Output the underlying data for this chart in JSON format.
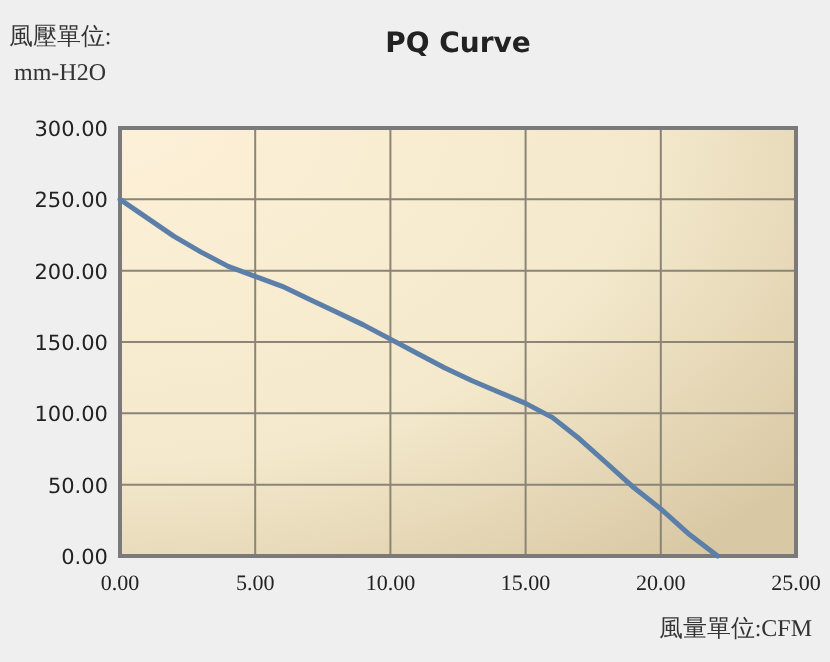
{
  "chart_data": {
    "type": "line",
    "title": "PQ Curve",
    "xlabel": "風量單位:CFM",
    "ylabel": "風壓單位: mm-H2O",
    "x": [
      0,
      1,
      2,
      3,
      4,
      5,
      6,
      7,
      8,
      9,
      10,
      11,
      12,
      13,
      14,
      15,
      16,
      17,
      18,
      19,
      20,
      21,
      22.1
    ],
    "series": [
      {
        "color": "#5b7fa8",
        "values": [
          250,
          237,
          224,
          213,
          203,
          196,
          189,
          180,
          171,
          162,
          152,
          142,
          132,
          123,
          115,
          107,
          97,
          82,
          65,
          48,
          33,
          16,
          0
        ]
      }
    ],
    "xlim": [
      0,
      25
    ],
    "ylim": [
      0,
      300
    ],
    "xticks": [
      {
        "value": 0,
        "label": "0.00"
      },
      {
        "value": 5,
        "label": "5.00"
      },
      {
        "value": 10,
        "label": "10.00"
      },
      {
        "value": 15,
        "label": "15.00"
      },
      {
        "value": 20,
        "label": "20.00"
      },
      {
        "value": 25,
        "label": "25.00"
      }
    ],
    "yticks": [
      {
        "value": 0,
        "label": "0.00"
      },
      {
        "value": 50,
        "label": "50.00"
      },
      {
        "value": 100,
        "label": "100.00"
      },
      {
        "value": 150,
        "label": "150.00"
      },
      {
        "value": 200,
        "label": "200.00"
      },
      {
        "value": 250,
        "label": "250.00"
      },
      {
        "value": 300,
        "label": "300.00"
      }
    ],
    "grid": true,
    "marker": "none",
    "line_style": "solid"
  }
}
